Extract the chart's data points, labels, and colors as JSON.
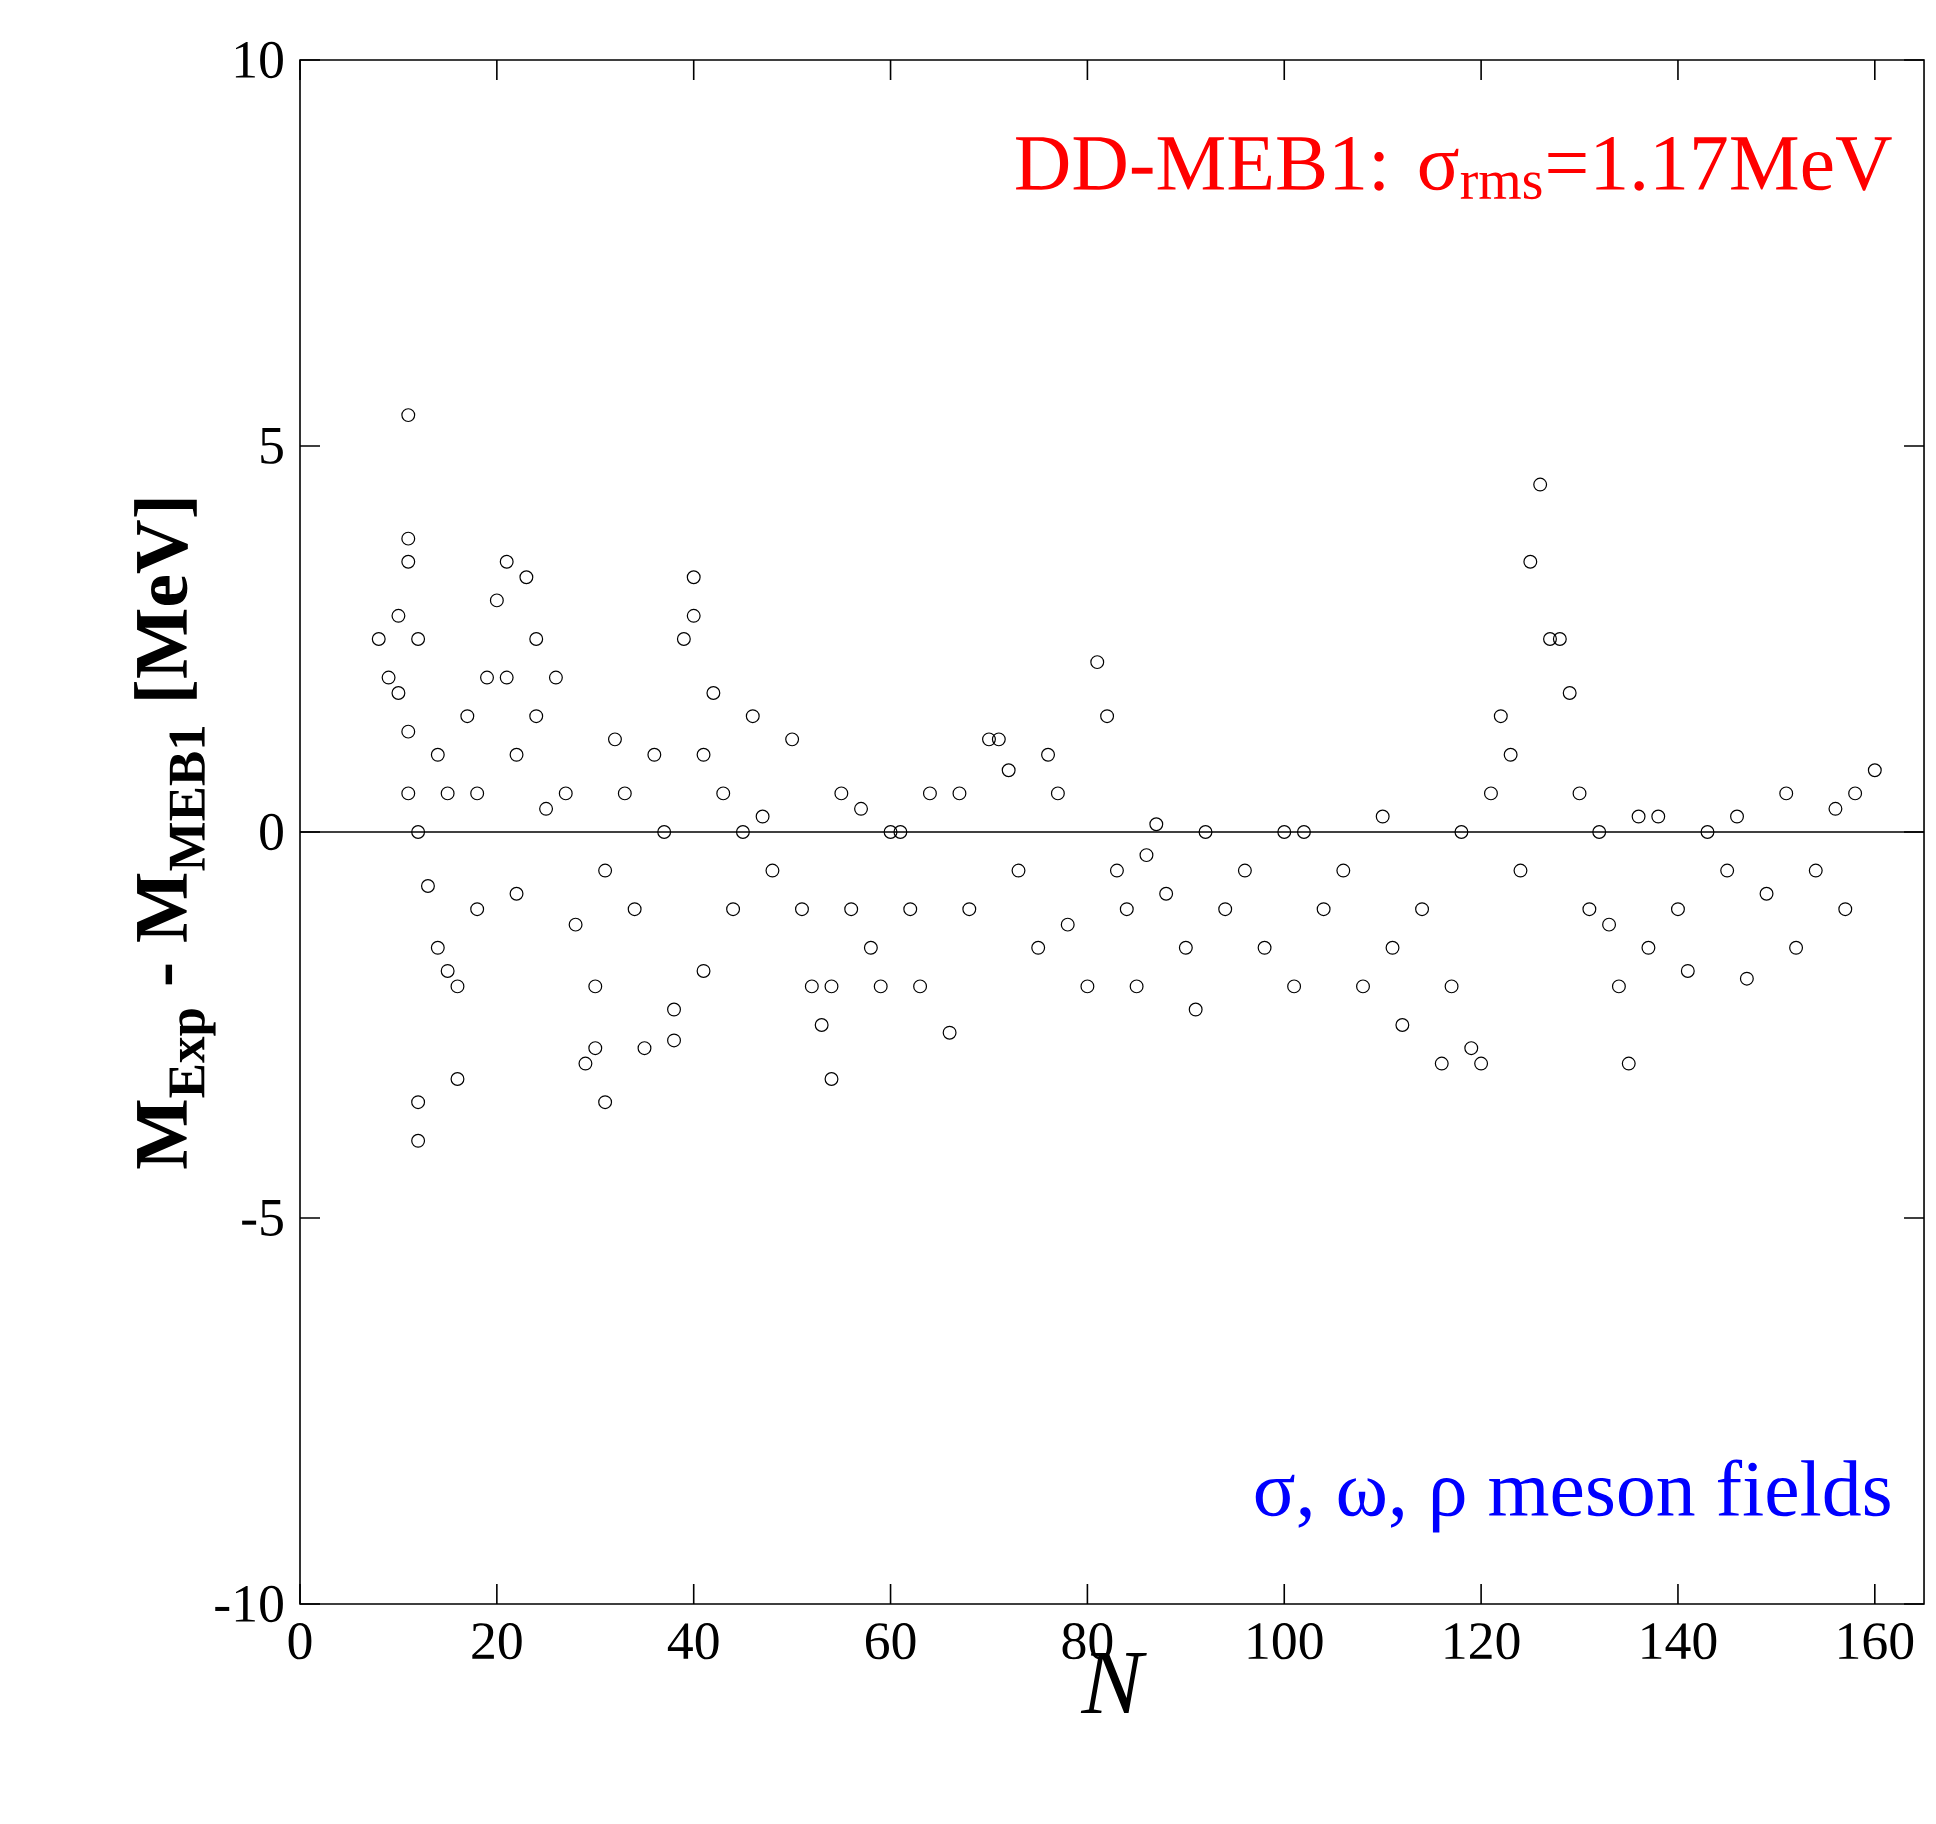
{
  "chart_data": {
    "type": "scatter",
    "xlabel": "N",
    "ylabel": "M$_{Exp}$ - M$_{MEB1}$ [MeV]",
    "annotations": [
      "DD-MEB1: σ$_{rms}$=1.17MeV",
      "σ, ω, ρ meson fields"
    ],
    "xlim": [
      0,
      165
    ],
    "ylim": [
      -10,
      10
    ],
    "xticks": [
      0,
      20,
      40,
      60,
      80,
      100,
      120,
      140,
      160
    ],
    "yticks": [
      -10,
      -5,
      0,
      5,
      10
    ],
    "grid": false,
    "marker": "circle",
    "ref_lines": [
      {
        "axis": "y",
        "value": 0,
        "color": "#000000"
      }
    ],
    "series": [
      {
        "color": "#000000",
        "x": [
          8,
          9,
          10,
          10,
          11,
          11,
          11,
          11,
          11,
          12,
          12,
          12,
          12,
          13,
          14,
          14,
          15,
          15,
          16,
          16,
          17,
          18,
          18,
          19,
          20,
          21,
          21,
          22,
          22,
          23,
          24,
          24,
          25,
          26,
          27,
          28,
          29,
          30,
          30,
          31,
          31,
          32,
          33,
          34,
          35,
          36,
          37,
          38,
          38,
          39,
          40,
          40,
          41,
          41,
          42,
          43,
          44,
          45,
          46,
          47,
          48,
          50,
          51,
          52,
          53,
          54,
          54,
          55,
          56,
          57,
          58,
          59,
          60,
          61,
          62,
          63,
          64,
          66,
          67,
          68,
          70,
          71,
          72,
          73,
          75,
          76,
          77,
          78,
          80,
          81,
          82,
          83,
          84,
          85,
          86,
          87,
          88,
          90,
          91,
          92,
          94,
          96,
          98,
          100,
          101,
          102,
          104,
          106,
          108,
          110,
          111,
          112,
          114,
          116,
          117,
          118,
          119,
          120,
          121,
          122,
          123,
          124,
          125,
          126,
          127,
          128,
          129,
          130,
          131,
          132,
          133,
          134,
          135,
          136,
          137,
          138,
          140,
          141,
          143,
          145,
          146,
          147,
          149,
          151,
          152,
          154,
          156,
          157,
          158,
          160
        ],
        "values": [
          2.5,
          2,
          2.8,
          1.8,
          5.4,
          3.8,
          3.5,
          1.3,
          0.5,
          -3.5,
          -4,
          0,
          2.5,
          -0.7,
          -1.5,
          1,
          0.5,
          -1.8,
          -3.2,
          -2,
          1.5,
          0.5,
          -1,
          2,
          3,
          3.5,
          2,
          1,
          -0.8,
          3.3,
          2.5,
          1.5,
          0.3,
          2,
          0.5,
          -1.2,
          -3,
          -2.8,
          -2,
          -3.5,
          -0.5,
          1.2,
          0.5,
          -1,
          -2.8,
          1,
          0,
          -2.3,
          -2.7,
          2.5,
          3.3,
          2.8,
          1,
          -1.8,
          1.8,
          0.5,
          -1,
          0,
          1.5,
          0.2,
          -0.5,
          1.2,
          -1,
          -2,
          -2.5,
          -3.2,
          -2,
          0.5,
          -1,
          0.3,
          -1.5,
          -2,
          0,
          0,
          -1,
          -2,
          0.5,
          -2.6,
          0.5,
          -1,
          1.2,
          1.2,
          0.8,
          -0.5,
          -1.5,
          1,
          0.5,
          -1.2,
          -2,
          2.2,
          1.5,
          -0.5,
          -1,
          -2,
          -0.3,
          0.1,
          -0.8,
          -1.5,
          -2.3,
          0,
          -1,
          -0.5,
          -1.5,
          0,
          -2,
          0,
          -1,
          -0.5,
          -2,
          0.2,
          -1.5,
          -2.5,
          -1,
          -3,
          -2,
          0,
          -2.8,
          -3,
          0.5,
          1.5,
          1,
          -0.5,
          3.5,
          4.5,
          2.5,
          2.5,
          1.8,
          0.5,
          -1,
          0,
          -1.2,
          -2,
          -3,
          0.2,
          -1.5,
          0.2,
          -1,
          -1.8,
          0,
          -0.5,
          0.2,
          -1.9,
          -0.8,
          0.5,
          -1.5,
          -0.5,
          0.3,
          -1,
          0.5,
          0.8
        ]
      }
    ]
  }
}
